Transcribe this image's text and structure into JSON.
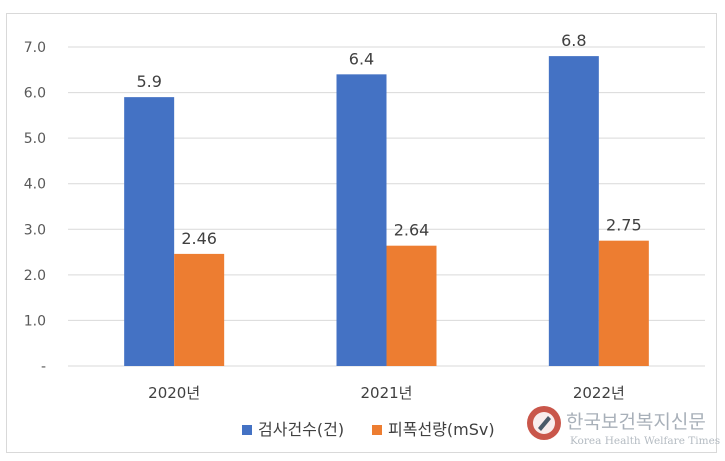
{
  "chart_data": {
    "type": "bar",
    "title": "",
    "xlabel": "",
    "ylabel": "",
    "categories": [
      "2020년",
      "2021년",
      "2022년"
    ],
    "series": [
      {
        "name": "검사건수(건)",
        "color": "#4472c4",
        "values": [
          5.9,
          6.4,
          6.8
        ],
        "labels": [
          "5.9",
          "6.4",
          "6.8"
        ]
      },
      {
        "name": "피폭선량(mSv)",
        "color": "#ed7d31",
        "values": [
          2.46,
          2.64,
          2.75
        ],
        "labels": [
          "2.46",
          "2.64",
          "2.75"
        ]
      }
    ],
    "ylim": [
      0,
      7
    ],
    "yticks": [
      {
        "value": 0,
        "label": "-"
      },
      {
        "value": 1,
        "label": "1.0"
      },
      {
        "value": 2,
        "label": "2.0"
      },
      {
        "value": 3,
        "label": "3.0"
      },
      {
        "value": 4,
        "label": "4.0"
      },
      {
        "value": 5,
        "label": "5.0"
      },
      {
        "value": 6,
        "label": "6.0"
      },
      {
        "value": 7,
        "label": "7.0"
      }
    ],
    "grid": true,
    "legend": "bottom",
    "gridline_color": "#d9d9d9"
  },
  "watermark": {
    "name": "한국보건복지신문",
    "subtitle": "Korea Health Welfare Times",
    "logo_color": "#c0392b"
  }
}
